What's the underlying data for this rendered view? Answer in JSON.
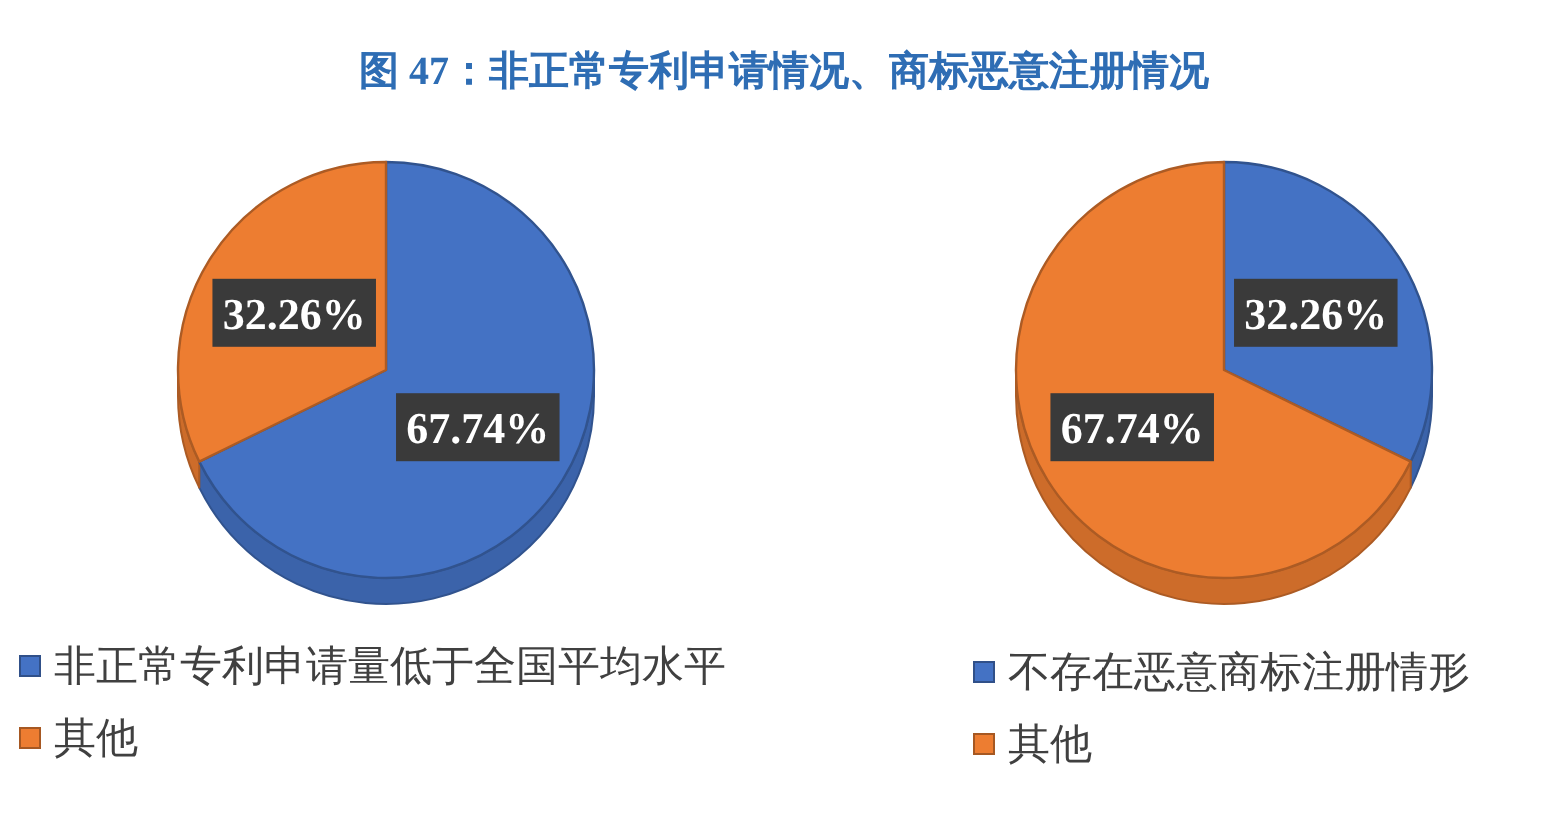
{
  "chart_data": [
    {
      "type": "pie",
      "title": "图 47：非正常专利申请情况、商标恶意注册情况",
      "categories": [
        "非正常专利申请量低于全国平均水平",
        "其他"
      ],
      "values": [
        67.74,
        32.26
      ],
      "colors": [
        "#4472c4",
        "#ed7d31"
      ],
      "value_labels": [
        "67.74%",
        "32.26%"
      ],
      "legend": "bottom left"
    },
    {
      "type": "pie",
      "categories": [
        "不存在恶意商标注册情形",
        "其他"
      ],
      "values": [
        32.26,
        67.74
      ],
      "colors": [
        "#4472c4",
        "#ed7d31"
      ],
      "value_labels": [
        "32.26%",
        "67.74%"
      ],
      "legend": "bottom left"
    }
  ]
}
